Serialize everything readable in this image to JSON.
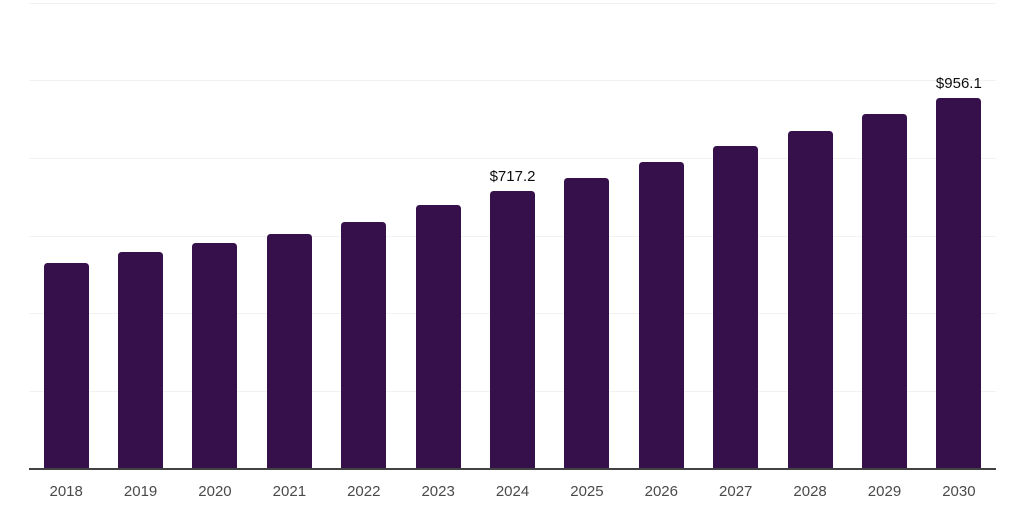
{
  "chart_data": {
    "type": "bar",
    "title": "",
    "xlabel": "",
    "ylabel": "",
    "categories": [
      "2018",
      "2019",
      "2020",
      "2021",
      "2022",
      "2023",
      "2024",
      "2025",
      "2026",
      "2027",
      "2028",
      "2029",
      "2030"
    ],
    "values": [
      530,
      560,
      581,
      606,
      637,
      680,
      717.2,
      750,
      791,
      832,
      870,
      915,
      956.1
    ],
    "annotations": [
      {
        "category": "2024",
        "text": "$717.2"
      },
      {
        "category": "2030",
        "text": "$956.1"
      }
    ],
    "ylim": [
      0,
      1200
    ],
    "gridline_values": [
      0,
      200,
      400,
      600,
      800,
      1000,
      1200
    ],
    "grid": true,
    "legend": false,
    "colors": {
      "bar": "#36104B",
      "gridline": "#f2f2f2",
      "axis_line": "#424242",
      "tick_label": "#4a4a4a",
      "annotation": "#0d0d0d",
      "background": "#ffffff"
    }
  }
}
